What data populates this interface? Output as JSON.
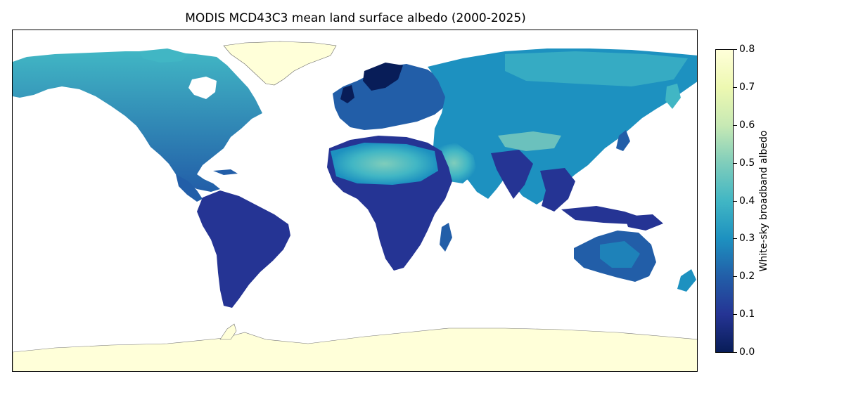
{
  "title": "MODIS MCD43C3 mean land surface albedo (2000-2025)",
  "colorbar": {
    "label": "White-sky broadband albedo",
    "ticks": [
      "0.0",
      "0.1",
      "0.2",
      "0.3",
      "0.4",
      "0.5",
      "0.6",
      "0.7",
      "0.8"
    ],
    "range": [
      0,
      0.8
    ],
    "colormap": "YlGnBu_r",
    "stops": [
      "#081d58",
      "#253494",
      "#225ea8",
      "#1d91c0",
      "#41b6c4",
      "#7fcdbb",
      "#c7e9b4",
      "#edf8b1",
      "#ffffd9"
    ]
  },
  "map": {
    "projection": "equirectangular",
    "ocean_color": "#ffffff",
    "coastline_color": "#555555",
    "ice_color": "#ffffd9",
    "land_low_color": "#253494",
    "land_mid_color": "#1d91c0",
    "desert_color": "#7fcdbb"
  }
}
